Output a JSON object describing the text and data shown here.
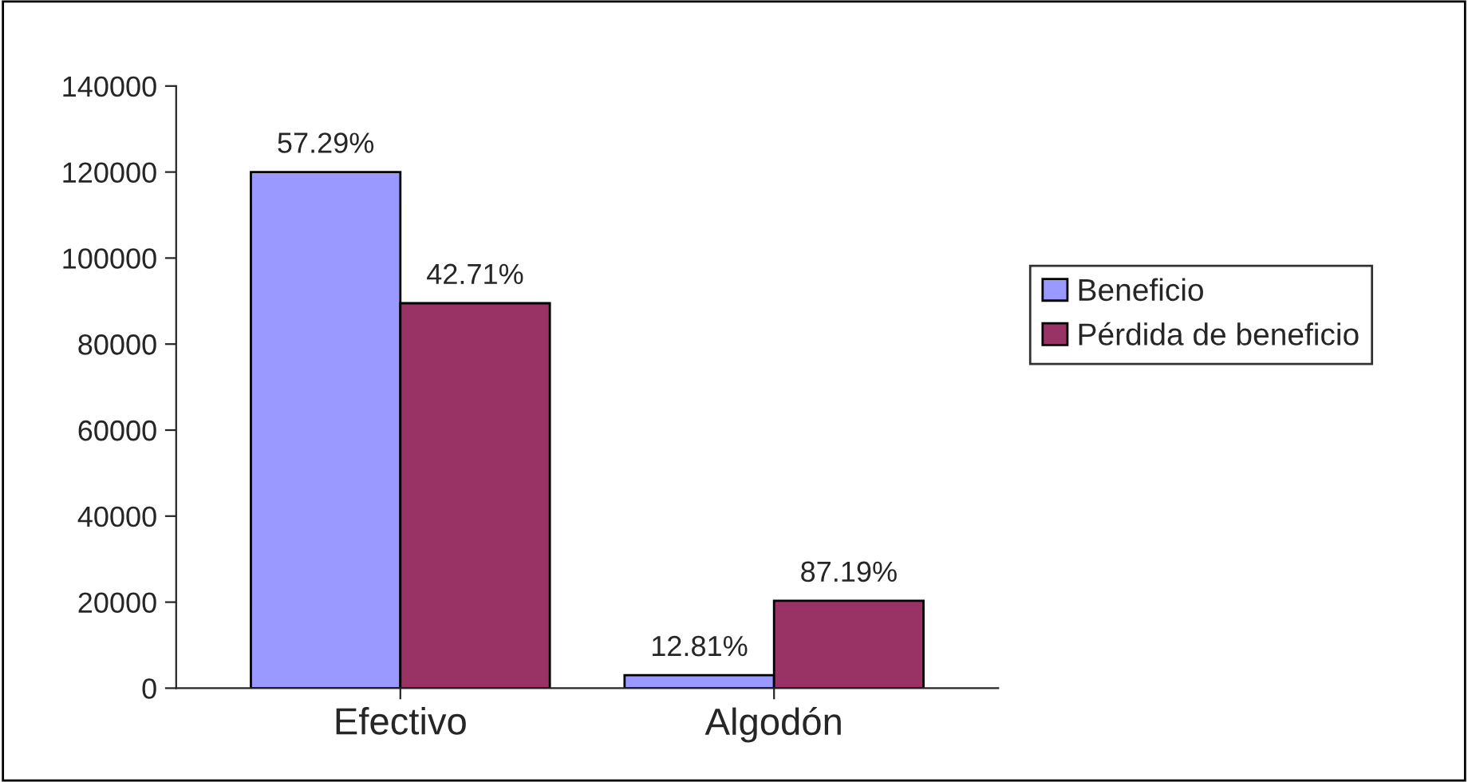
{
  "chart_data": {
    "type": "bar",
    "categories": [
      "Efectivo",
      "Algodón"
    ],
    "series": [
      {
        "name": "Beneficio",
        "color": "#9999ff",
        "values": [
          120000,
          3000
        ]
      },
      {
        "name": "Pérdida de beneficio",
        "color": "#993366",
        "values": [
          89500,
          20300
        ]
      }
    ],
    "annotations": [
      {
        "text": "57.29%",
        "x": "Efectivo",
        "y": 120000
      },
      {
        "text": "42.71%",
        "x": "Efectivo",
        "y": 89500
      },
      {
        "text": "12.81%",
        "x": "Algodón",
        "y": 3000
      },
      {
        "text": "87.19%",
        "x": "Algodón",
        "y": 20300
      }
    ],
    "ylim": [
      0,
      140000
    ],
    "yticks": [
      0,
      20000,
      40000,
      60000,
      80000,
      100000,
      120000,
      140000
    ],
    "grid": false,
    "legend": "right"
  }
}
